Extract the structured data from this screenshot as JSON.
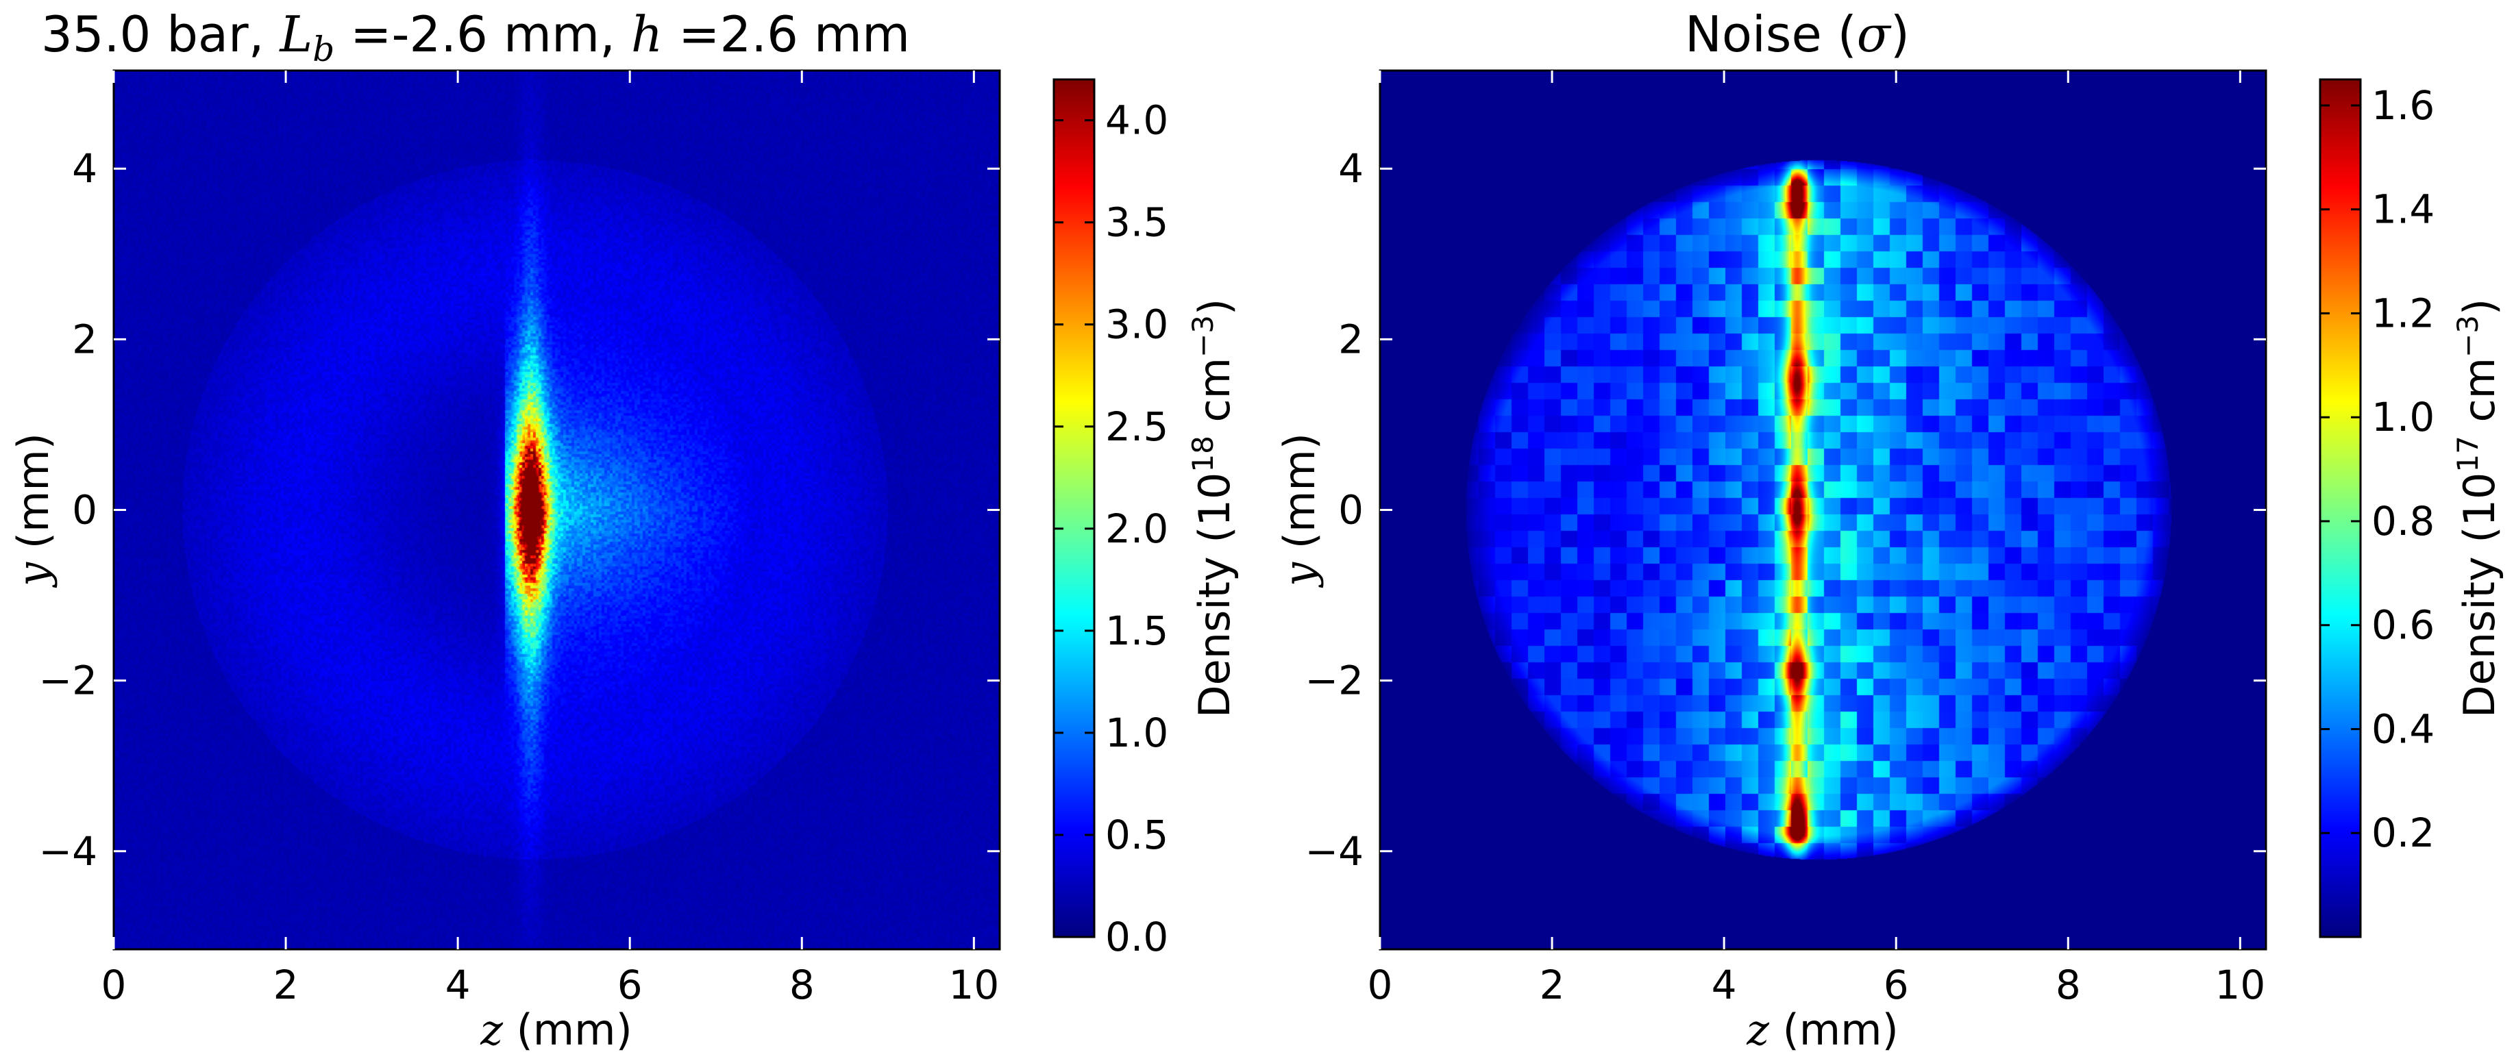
{
  "colors": {
    "jet": [
      "#00007f",
      "#0000ff",
      "#007fff",
      "#00ffff",
      "#7fff7f",
      "#ffff00",
      "#ff7f00",
      "#ff0000",
      "#7f0000"
    ],
    "axis": "#000000",
    "background": "#ffffff"
  },
  "chart_data": [
    {
      "type": "heatmap",
      "title": "35.0 bar, L_b =-2.6 mm, h =2.6 mm",
      "title_parts": {
        "prefix": "35.0 bar, ",
        "sym1": "L",
        "sym1_sub": "b",
        "mid": " =-2.6 mm, ",
        "sym2": "h",
        "suffix": " =2.6 mm"
      },
      "xlabel": "z (mm)",
      "xlabel_parts": {
        "sym": "z",
        "text": " (mm)"
      },
      "ylabel": "y (mm)",
      "ylabel_parts": {
        "sym": "y",
        "text": " (mm)"
      },
      "xlim": [
        0,
        10.3
      ],
      "ylim": [
        -5.15,
        5.15
      ],
      "xticks": [
        0,
        2,
        4,
        6,
        8,
        10
      ],
      "xtick_labels": [
        "0",
        "2",
        "4",
        "6",
        "8",
        "10"
      ],
      "yticks": [
        4,
        2,
        0,
        -2,
        -4
      ],
      "ytick_labels": [
        "4",
        "2",
        "0",
        "−2",
        "−4"
      ],
      "colorbar": {
        "label": "Density (10^18 cm^-3)",
        "label_parts": {
          "text": "Density (10",
          "exp": "18",
          "unit": " cm",
          "unit_exp": "−3",
          "close": ")"
        },
        "range": [
          0.0,
          4.2
        ],
        "ticks": [
          0.0,
          0.5,
          1.0,
          1.5,
          2.0,
          2.5,
          3.0,
          3.5,
          4.0
        ],
        "tick_labels": [
          "0.0",
          "0.5",
          "1.0",
          "1.5",
          "2.0",
          "2.5",
          "3.0",
          "3.5",
          "4.0"
        ]
      },
      "field": {
        "description_values": "density in 10^18 cm^-3",
        "background": 0.2,
        "peak_center": {
          "z": 4.85,
          "y": 0.0,
          "value": 4.0
        },
        "shell_radius": 4.1,
        "shell_center_z": 4.9
      }
    },
    {
      "type": "heatmap",
      "title": "Noise (σ)",
      "title_parts": {
        "text": "Noise (",
        "sym": "σ",
        "close": ")"
      },
      "xlabel": "z (mm)",
      "xlabel_parts": {
        "sym": "z",
        "text": " (mm)"
      },
      "ylabel": "y (mm)",
      "ylabel_parts": {
        "sym": "y",
        "text": " (mm)"
      },
      "xlim": [
        0,
        10.3
      ],
      "ylim": [
        -5.15,
        5.15
      ],
      "xticks": [
        0,
        2,
        4,
        6,
        8,
        10
      ],
      "xtick_labels": [
        "0",
        "2",
        "4",
        "6",
        "8",
        "10"
      ],
      "yticks": [
        4,
        2,
        0,
        -2,
        -4
      ],
      "ytick_labels": [
        "4",
        "2",
        "0",
        "−2",
        "−4"
      ],
      "colorbar": {
        "label": "Density (10^17 cm^-3)",
        "label_parts": {
          "text": "Density (10",
          "exp": "17",
          "unit": "cm",
          "unit_exp": "−3",
          "close": ")"
        },
        "range": [
          0.0,
          1.65
        ],
        "ticks": [
          0.2,
          0.4,
          0.6,
          0.8,
          1.0,
          1.2,
          1.4,
          1.6
        ],
        "tick_labels": [
          "0.2",
          "0.4",
          "0.6",
          "0.8",
          "1.0",
          "1.2",
          "1.4",
          "1.6"
        ]
      },
      "field": {
        "description_values": "noise sigma in 10^17 cm^-3",
        "disk_center": {
          "z": 5.1,
          "y": 0.0
        },
        "disk_radius": 4.1,
        "spine_z": 4.85,
        "hot_spots_y": [
          3.7,
          1.5,
          0.0,
          -1.9,
          -3.7
        ]
      }
    }
  ]
}
